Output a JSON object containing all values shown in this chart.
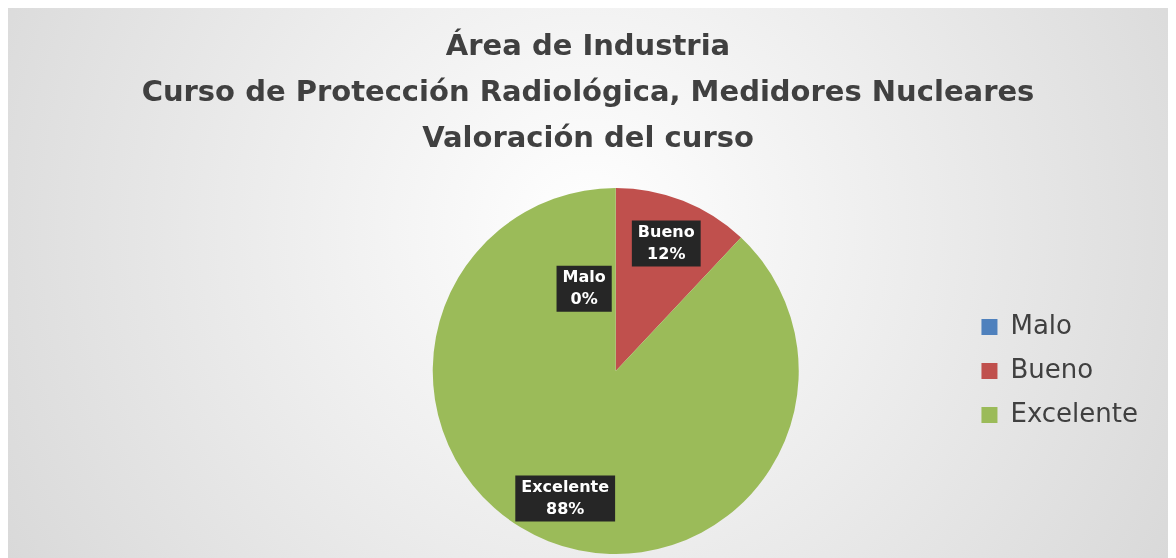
{
  "chart_data": {
    "type": "pie",
    "title": "Área de Industria\nCurso de Protección Radiológica, Medidores Nucleares\nValoración del curso",
    "categories": [
      "Malo",
      "Bueno",
      "Excelente"
    ],
    "values": [
      0,
      12,
      88
    ],
    "colors": [
      "#4f81bd",
      "#c0504d",
      "#9bbb59"
    ],
    "value_labels": [
      "0%",
      "12%",
      "88%"
    ],
    "legend": "right"
  }
}
